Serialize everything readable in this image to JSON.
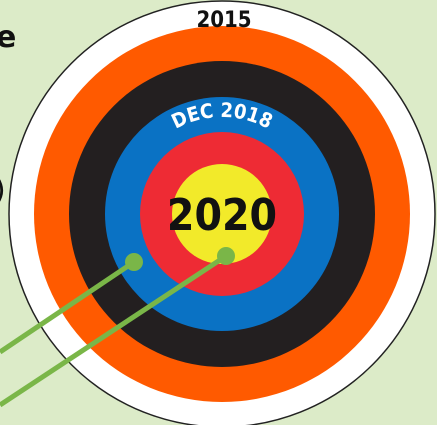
{
  "side_text": [
    "e",
    ")"
  ],
  "rings": {
    "outer": "2015",
    "middle": "DEC 2018",
    "center": "2020"
  }
}
